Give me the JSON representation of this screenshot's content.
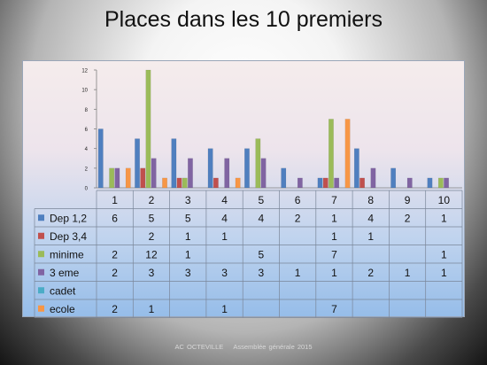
{
  "slide": {
    "title": "Places dans les 10 premiers",
    "footer_left": "AC OCTEVILLE",
    "footer_right": "Assemblée générale 2015"
  },
  "chart_data": {
    "type": "bar",
    "title": "Places dans les 10 premiers",
    "categories": [
      "1",
      "2",
      "3",
      "4",
      "5",
      "6",
      "7",
      "8",
      "9",
      "10"
    ],
    "ylim": [
      0,
      12
    ],
    "yticks": [
      0,
      2,
      4,
      6,
      8,
      10,
      12
    ],
    "grid": false,
    "legend": "data-table-left",
    "series": [
      {
        "name": "Dep 1,2",
        "color": "#4f7fbf",
        "values": [
          6,
          5,
          5,
          4,
          4,
          2,
          1,
          4,
          2,
          1
        ]
      },
      {
        "name": "Dep 3,4",
        "color": "#c0504d",
        "values": [
          null,
          2,
          1,
          1,
          null,
          null,
          1,
          1,
          null,
          null
        ]
      },
      {
        "name": "minime",
        "color": "#9bbb59",
        "values": [
          2,
          12,
          1,
          null,
          5,
          null,
          7,
          null,
          null,
          1
        ]
      },
      {
        "name": "3 eme",
        "color": "#8064a2",
        "values": [
          2,
          3,
          3,
          3,
          3,
          1,
          1,
          2,
          1,
          1
        ]
      },
      {
        "name": "cadet",
        "color": "#4bacc6",
        "values": [
          null,
          null,
          null,
          null,
          null,
          null,
          null,
          null,
          null,
          null
        ]
      },
      {
        "name": "ecole",
        "color": "#f79646",
        "values": [
          2,
          1,
          null,
          1,
          null,
          null,
          7,
          null,
          null,
          null
        ]
      }
    ]
  }
}
